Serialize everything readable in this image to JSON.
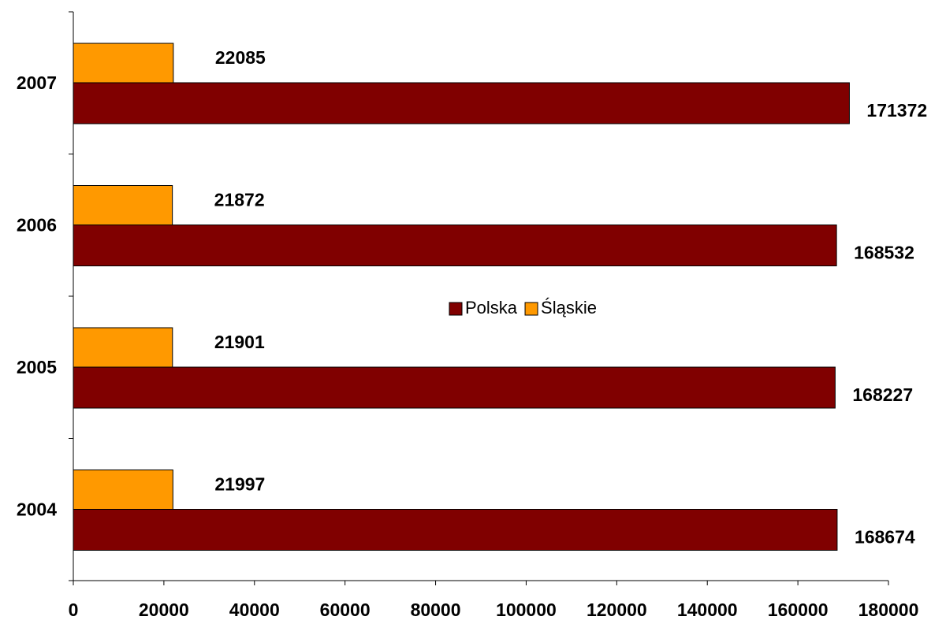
{
  "chart_data": {
    "type": "hbar",
    "categories": [
      "2004",
      "2005",
      "2006",
      "2007"
    ],
    "series": [
      {
        "name": "Polska",
        "color": "#800000",
        "values": [
          168674,
          168227,
          168532,
          171372
        ]
      },
      {
        "name": "Śląskie",
        "color": "#FF9900",
        "values": [
          21997,
          21901,
          21872,
          22085
        ]
      }
    ],
    "xlim": [
      0,
      180000
    ],
    "xticks": [
      0,
      20000,
      40000,
      60000,
      80000,
      100000,
      120000,
      140000,
      160000,
      180000
    ],
    "legend": "center"
  }
}
